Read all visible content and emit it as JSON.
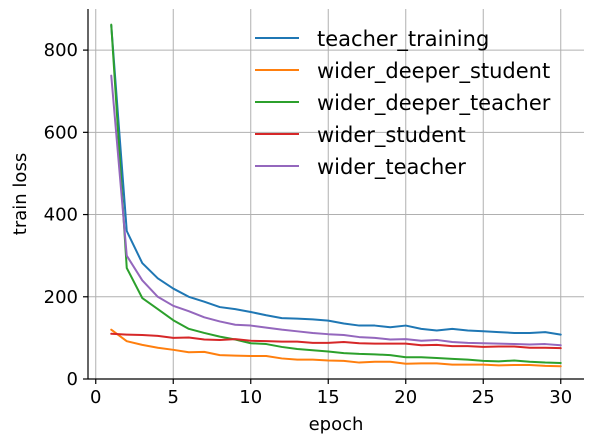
{
  "chart_data": {
    "type": "line",
    "title": "",
    "xlabel": "epoch",
    "ylabel": "train loss",
    "xlim": [
      -0.5,
      31.5
    ],
    "ylim": [
      0,
      900
    ],
    "xticks": [
      0,
      5,
      10,
      15,
      20,
      25,
      30
    ],
    "yticks": [
      0,
      200,
      400,
      600,
      800
    ],
    "grid": true,
    "legend_position": "top-right",
    "x": [
      1,
      2,
      3,
      4,
      5,
      6,
      7,
      8,
      9,
      10,
      11,
      12,
      13,
      14,
      15,
      16,
      17,
      18,
      19,
      20,
      21,
      22,
      23,
      24,
      25,
      26,
      27,
      28,
      29,
      30
    ],
    "series": [
      {
        "name": "teacher_training",
        "color": "#1f77b4",
        "values": [
          860,
          360,
          282,
          245,
          220,
          200,
          188,
          175,
          170,
          163,
          155,
          148,
          147,
          145,
          142,
          135,
          130,
          130,
          126,
          130,
          122,
          118,
          122,
          118,
          116,
          114,
          112,
          112,
          114,
          108
        ]
      },
      {
        "name": "wider_deeper_student",
        "color": "#ff7f0e",
        "values": [
          120,
          92,
          83,
          76,
          71,
          65,
          66,
          58,
          57,
          56,
          56,
          50,
          47,
          47,
          45,
          44,
          40,
          42,
          42,
          37,
          38,
          38,
          35,
          35,
          35,
          33,
          34,
          34,
          32,
          31
        ]
      },
      {
        "name": "wider_deeper_teacher",
        "color": "#2ca02c",
        "values": [
          862,
          270,
          197,
          170,
          143,
          122,
          112,
          103,
          96,
          87,
          85,
          78,
          73,
          70,
          67,
          63,
          61,
          60,
          58,
          53,
          53,
          51,
          49,
          47,
          44,
          43,
          45,
          42,
          40,
          39
        ]
      },
      {
        "name": "wider_student",
        "color": "#d62728",
        "values": [
          110,
          108,
          107,
          105,
          100,
          101,
          96,
          95,
          97,
          93,
          92,
          91,
          91,
          88,
          88,
          90,
          87,
          86,
          86,
          86,
          82,
          83,
          80,
          80,
          78,
          79,
          79,
          76,
          76,
          75
        ]
      },
      {
        "name": "wider_teacher",
        "color": "#9467bd",
        "values": [
          738,
          300,
          240,
          200,
          178,
          165,
          150,
          140,
          132,
          130,
          125,
          120,
          116,
          112,
          109,
          107,
          102,
          100,
          96,
          97,
          93,
          95,
          90,
          88,
          87,
          86,
          85,
          84,
          85,
          82
        ]
      }
    ]
  }
}
